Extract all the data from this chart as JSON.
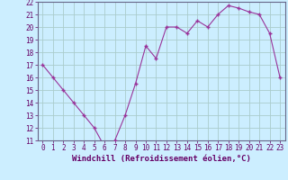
{
  "x": [
    0,
    1,
    2,
    3,
    4,
    5,
    6,
    7,
    8,
    9,
    10,
    11,
    12,
    13,
    14,
    15,
    16,
    17,
    18,
    19,
    20,
    21,
    22,
    23
  ],
  "y": [
    17,
    16,
    15,
    14,
    13,
    12,
    10.5,
    11,
    13,
    15.5,
    18.5,
    17.5,
    20,
    20,
    19.5,
    20.5,
    20,
    21,
    21.7,
    21.5,
    21.2,
    21,
    19.5,
    16
  ],
  "line_color": "#993399",
  "marker_color": "#993399",
  "bg_color": "#cceeff",
  "grid_color": "#aacccc",
  "xlabel": "Windchill (Refroidissement éolien,°C)",
  "ylim_min": 11,
  "ylim_max": 22,
  "xlim_min": -0.5,
  "xlim_max": 23.5,
  "yticks": [
    11,
    12,
    13,
    14,
    15,
    16,
    17,
    18,
    19,
    20,
    21,
    22
  ],
  "xticks": [
    0,
    1,
    2,
    3,
    4,
    5,
    6,
    7,
    8,
    9,
    10,
    11,
    12,
    13,
    14,
    15,
    16,
    17,
    18,
    19,
    20,
    21,
    22,
    23
  ],
  "tick_label_fontsize": 5.5,
  "xlabel_fontsize": 6.5
}
